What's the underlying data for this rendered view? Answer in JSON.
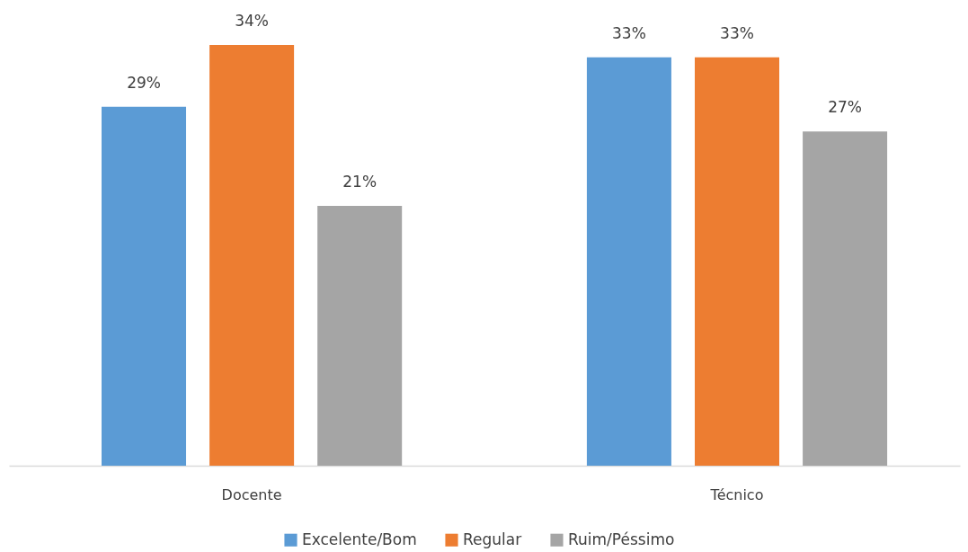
{
  "chart_data": {
    "type": "bar",
    "categories": [
      "Docente",
      "Técnico"
    ],
    "series": [
      {
        "name": "Excelente/Bom",
        "color": "#5b9bd5",
        "values": [
          29,
          33
        ],
        "value_labels": [
          "29%",
          "33%"
        ]
      },
      {
        "name": "Regular",
        "color": "#ed7d31",
        "values": [
          34,
          33
        ],
        "value_labels": [
          "34%",
          "33%"
        ]
      },
      {
        "name": "Ruim/Péssimo",
        "color": "#a5a5a5",
        "values": [
          21,
          27
        ],
        "value_labels": [
          "21%",
          "27%"
        ]
      }
    ],
    "legend": "bottom",
    "tick_labels": "x"
  }
}
